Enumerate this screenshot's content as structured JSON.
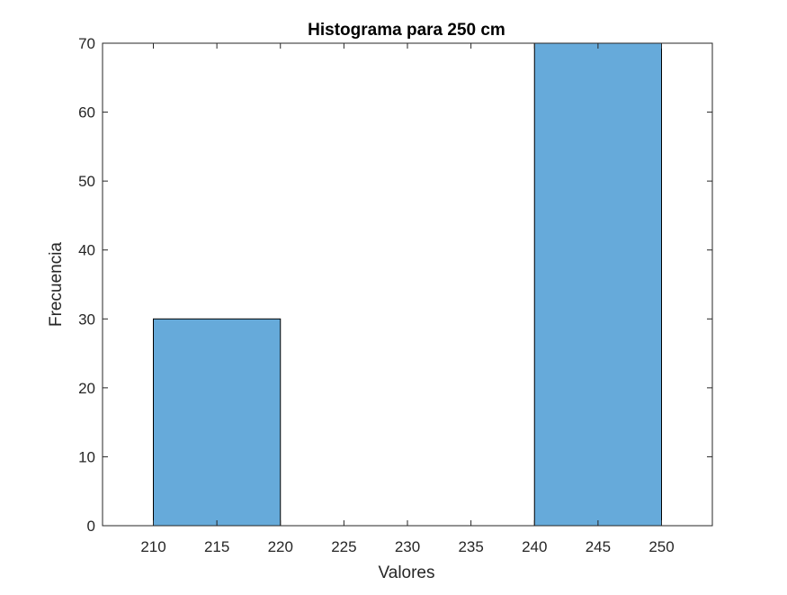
{
  "chart_data": {
    "type": "bar",
    "title": "Histograma para 250 cm",
    "xlabel": "Valores",
    "ylabel": "Frecuencia",
    "xlim": [
      206,
      254
    ],
    "ylim": [
      0,
      70
    ],
    "xticks": [
      210,
      215,
      220,
      225,
      230,
      235,
      240,
      245,
      250
    ],
    "yticks": [
      0,
      10,
      20,
      30,
      40,
      50,
      60,
      70
    ],
    "bins": [
      {
        "start": 210,
        "end": 220,
        "value": 30
      },
      {
        "start": 220,
        "end": 230,
        "value": 0
      },
      {
        "start": 230,
        "end": 240,
        "value": 0
      },
      {
        "start": 240,
        "end": 250,
        "value": 70
      }
    ],
    "bar_color": "#66AADA",
    "bar_edge_color": "#000000",
    "grid": false,
    "legend": "none"
  }
}
